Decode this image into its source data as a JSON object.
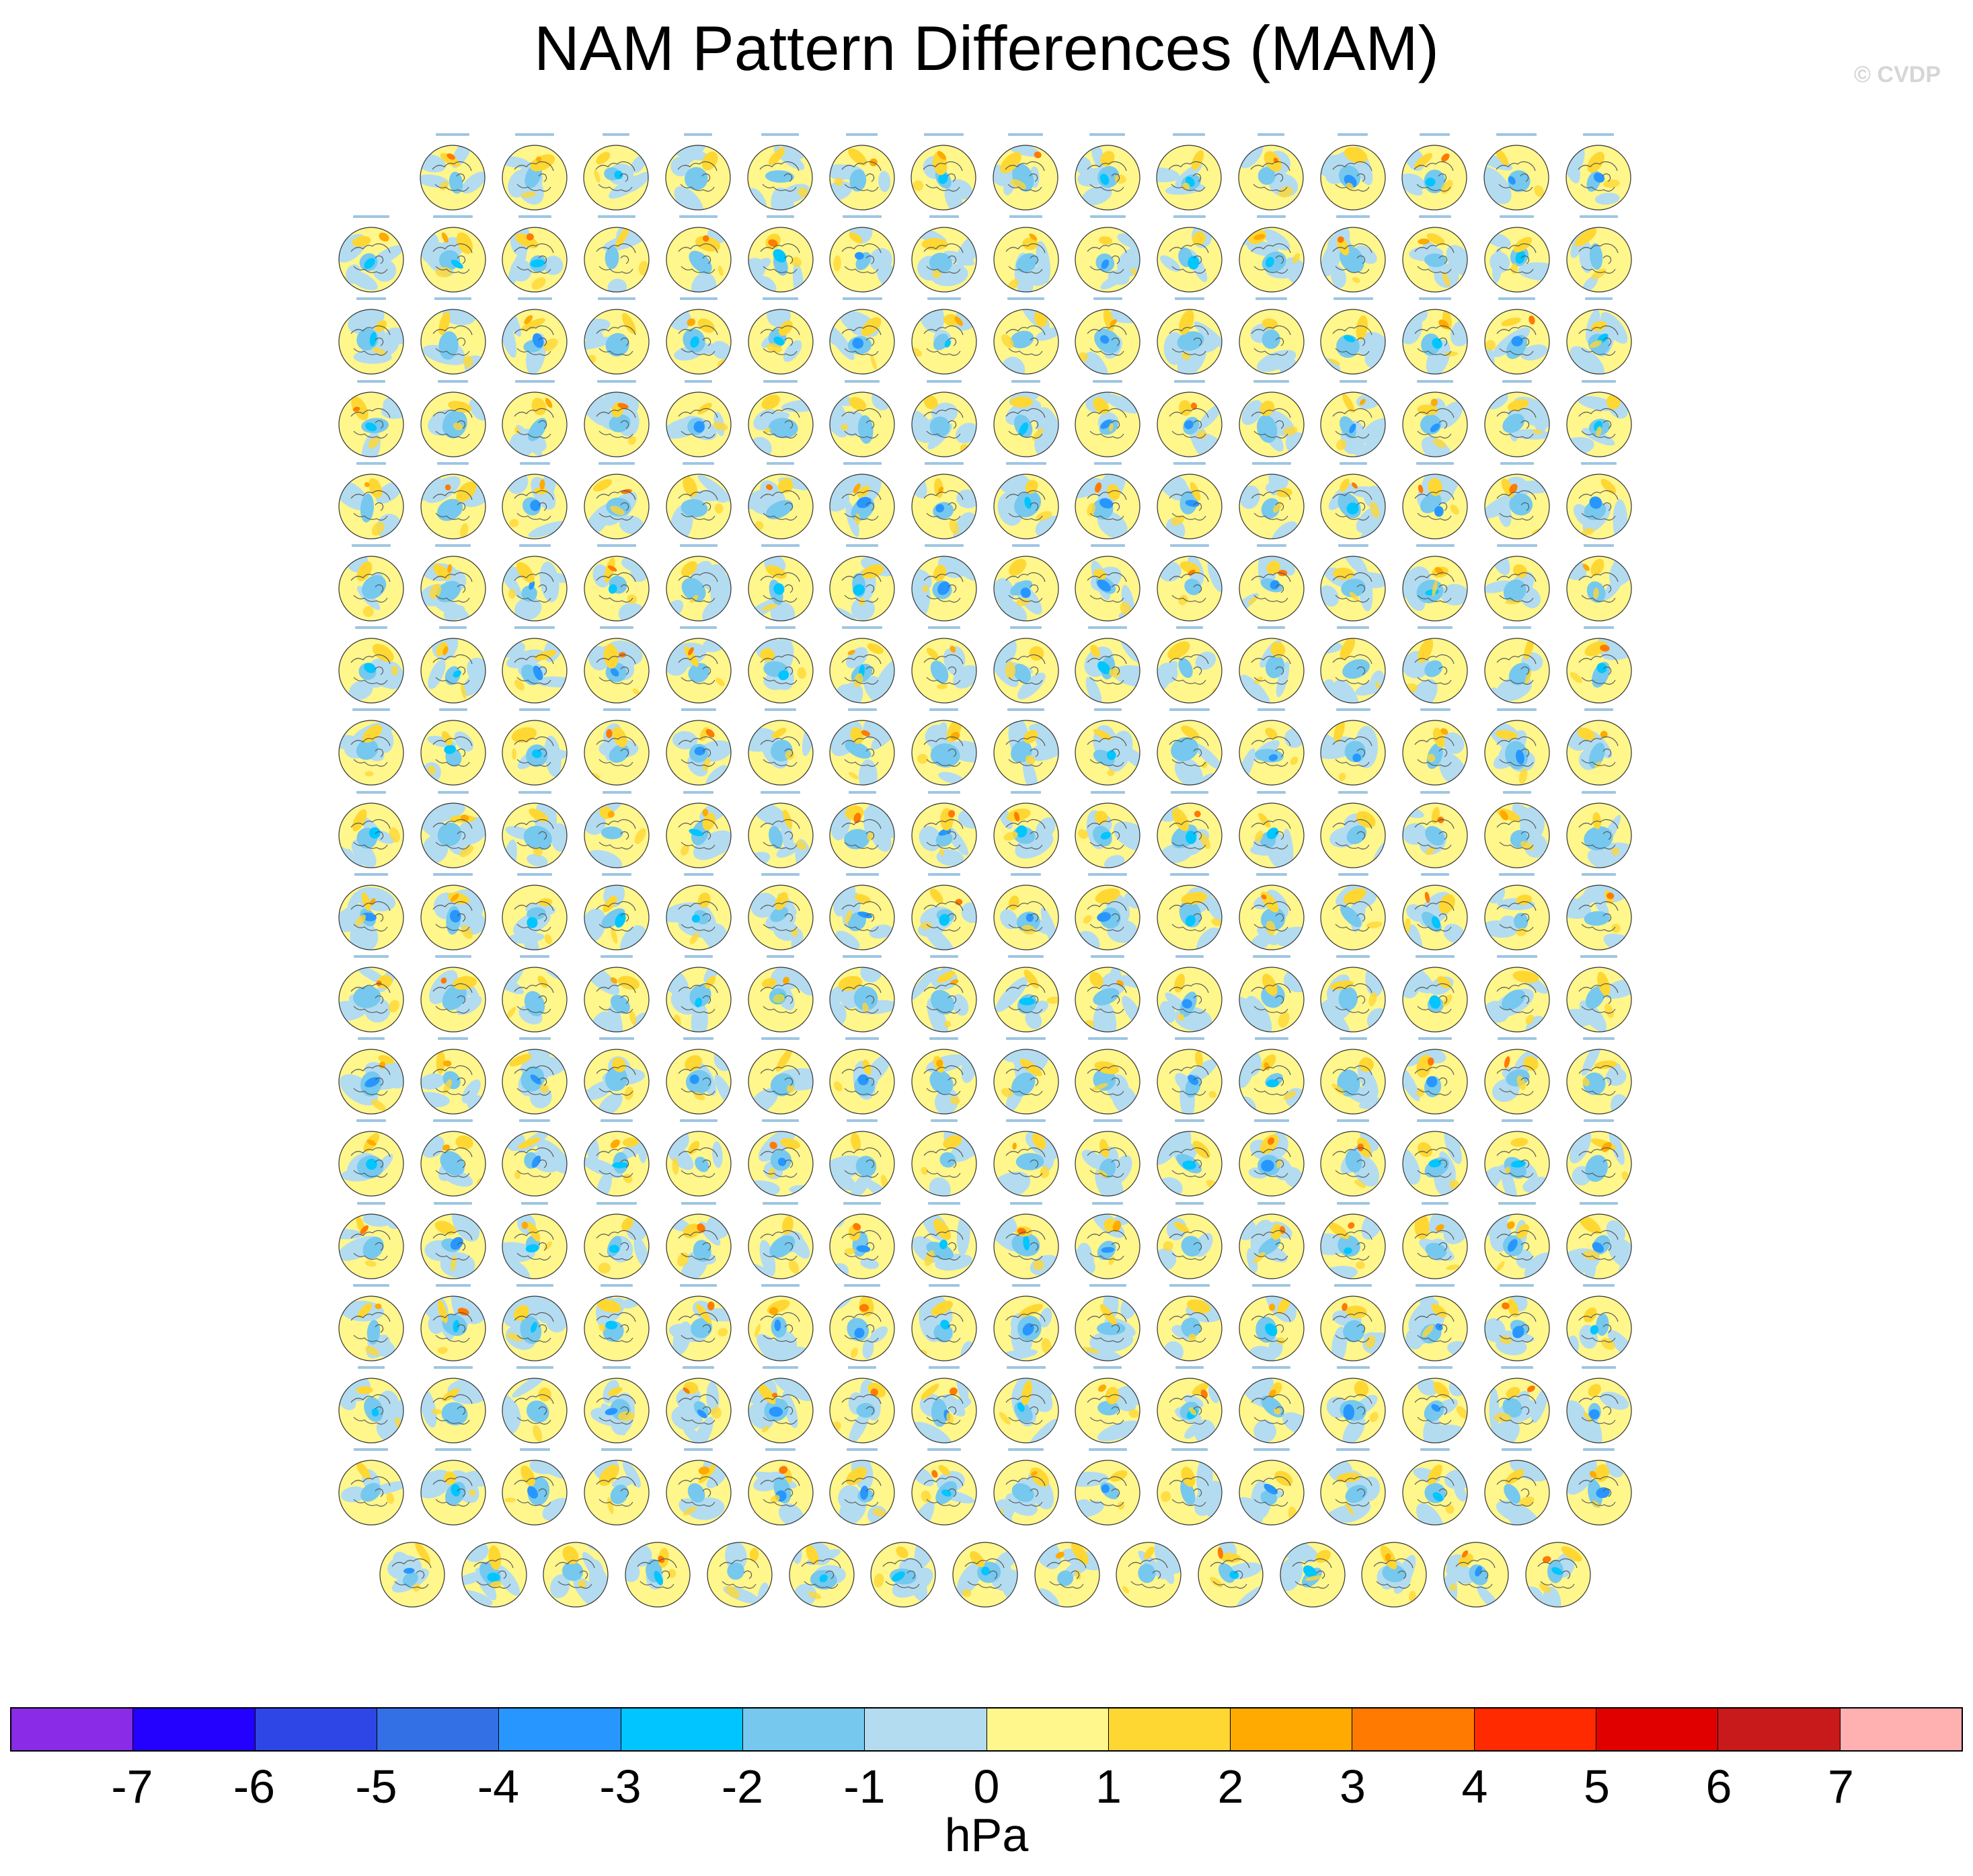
{
  "title": "NAM Pattern Differences (MAM)",
  "watermark": "© CVDP",
  "grid": {
    "rows": [
      15,
      16,
      16,
      16,
      16,
      16,
      16,
      16,
      16,
      16,
      16,
      16,
      16,
      16,
      16,
      16,
      16,
      15
    ]
  },
  "colorbar": {
    "unit": "hPa",
    "colors": [
      "#8a2be8",
      "#2400ff",
      "#2e46e6",
      "#3370e6",
      "#2896ff",
      "#00c5ff",
      "#76c8ee",
      "#b3dcf0",
      "#fff68c",
      "#ffd733",
      "#ffaa00",
      "#ff7a00",
      "#ff2a00",
      "#e00000",
      "#c81a1a",
      "#ffb0b0"
    ],
    "labels": [
      "-7",
      "-6",
      "-5",
      "-4",
      "-3",
      "-2",
      "-1",
      "0",
      "1",
      "2",
      "3",
      "4",
      "5",
      "6",
      "7"
    ],
    "icon": "color-bar"
  }
}
